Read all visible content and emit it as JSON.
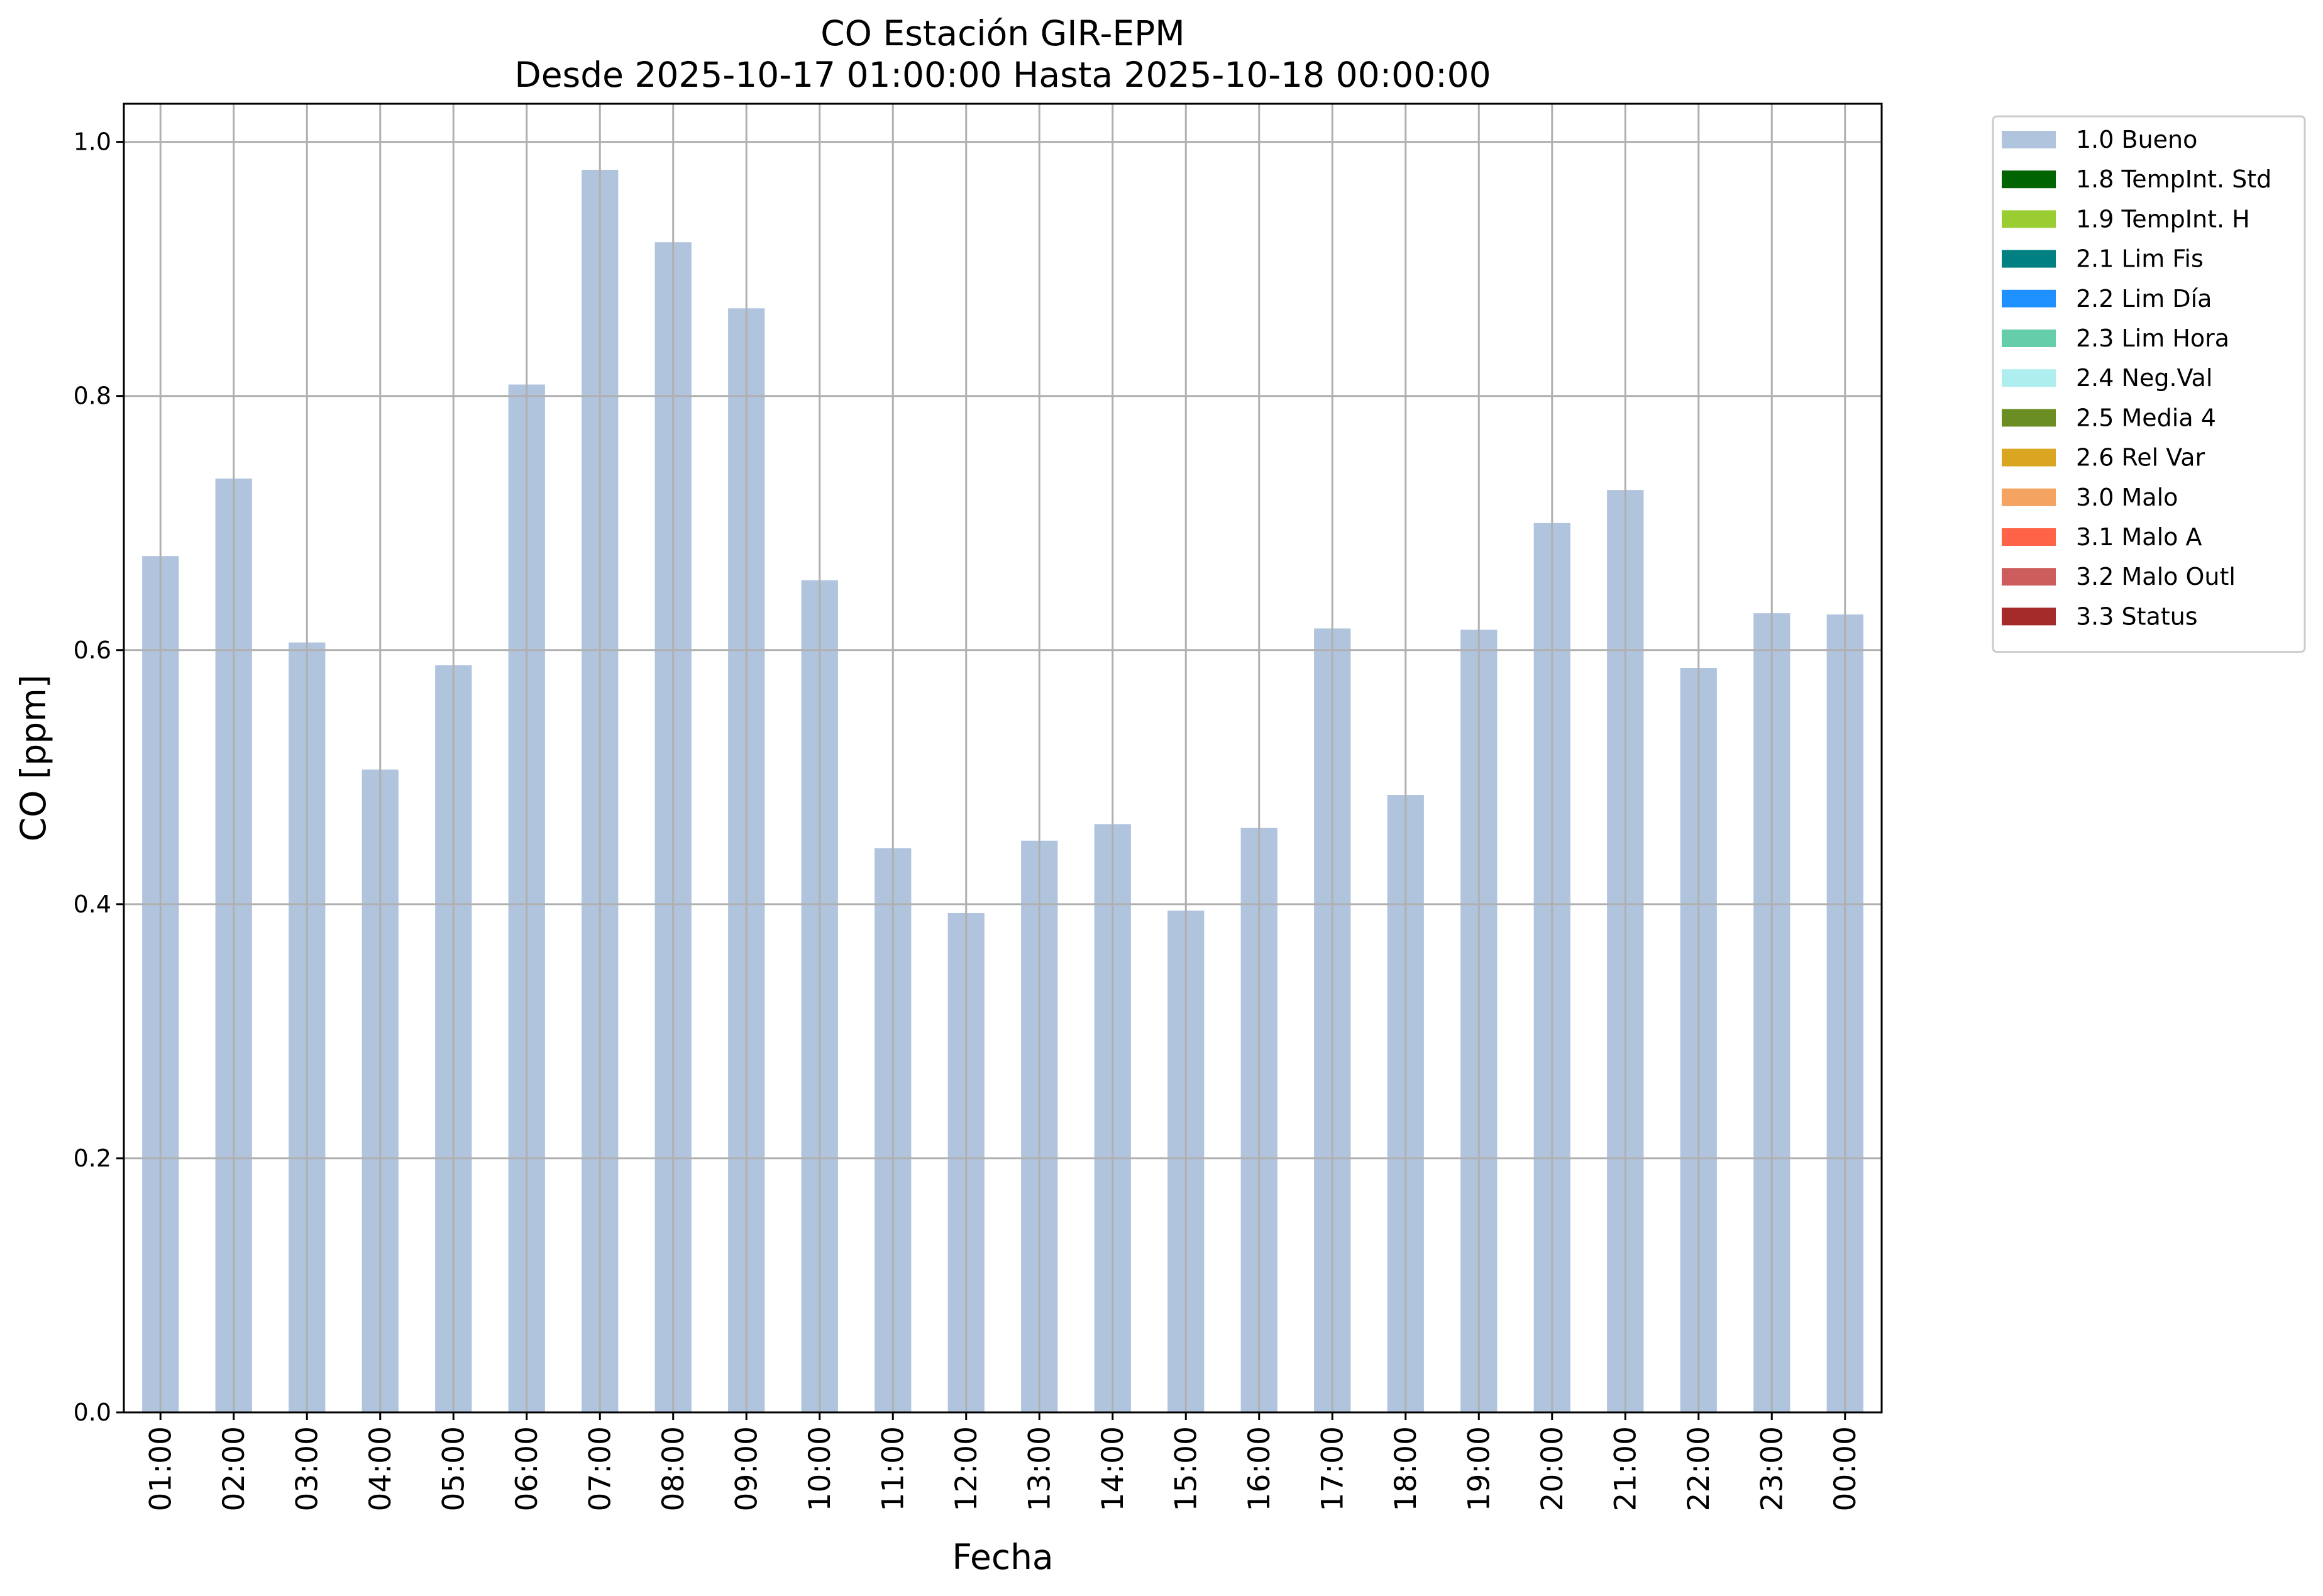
{
  "chart_data": {
    "type": "bar",
    "title_line1": "CO Estación GIR-EPM",
    "title_line2": "Desde 2025-10-17 01:00:00 Hasta 2025-10-18 00:00:00",
    "xlabel": "Fecha",
    "ylabel": "CO [ppm]",
    "ylim": [
      0,
      1.03
    ],
    "yticks": [
      0.0,
      0.2,
      0.4,
      0.6,
      0.8,
      1.0
    ],
    "ytick_labels": [
      "0.0",
      "0.2",
      "0.4",
      "0.6",
      "0.8",
      "1.0"
    ],
    "grid": true,
    "legend_position": "outside-right-top",
    "categories": [
      "01:00",
      "02:00",
      "03:00",
      "04:00",
      "05:00",
      "06:00",
      "07:00",
      "08:00",
      "09:00",
      "10:00",
      "11:00",
      "12:00",
      "13:00",
      "14:00",
      "15:00",
      "16:00",
      "17:00",
      "18:00",
      "19:00",
      "20:00",
      "21:00",
      "22:00",
      "23:00",
      "00:00"
    ],
    "series": [
      {
        "name": "1.0 Bueno",
        "color": "#b0c4de",
        "values": [
          0.674,
          0.735,
          0.606,
          0.506,
          0.588,
          0.809,
          0.978,
          0.921,
          0.869,
          0.655,
          0.444,
          0.393,
          0.45,
          0.463,
          0.395,
          0.46,
          0.617,
          0.486,
          0.616,
          0.7,
          0.726,
          0.586,
          0.629,
          0.628
        ]
      }
    ],
    "legend": [
      {
        "label": "1.0 Bueno",
        "color": "#b0c4de"
      },
      {
        "label": "1.8 TempInt. Std",
        "color": "#006400"
      },
      {
        "label": "1.9 TempInt. H",
        "color": "#9acd32"
      },
      {
        "label": "2.1 Lim Fis",
        "color": "#008080"
      },
      {
        "label": "2.2 Lim Día",
        "color": "#1e90ff"
      },
      {
        "label": "2.3 Lim Hora",
        "color": "#66cdaa"
      },
      {
        "label": "2.4 Neg.Val",
        "color": "#afeeee"
      },
      {
        "label": "2.5 Media 4",
        "color": "#6b8e23"
      },
      {
        "label": "2.6 Rel Var",
        "color": "#daa520"
      },
      {
        "label": "3.0 Malo",
        "color": "#f4a460"
      },
      {
        "label": "3.1 Malo A",
        "color": "#ff6347"
      },
      {
        "label": "3.2 Malo Outl",
        "color": "#cd5c5c"
      },
      {
        "label": "3.3 Status",
        "color": "#a52a2a"
      }
    ]
  }
}
